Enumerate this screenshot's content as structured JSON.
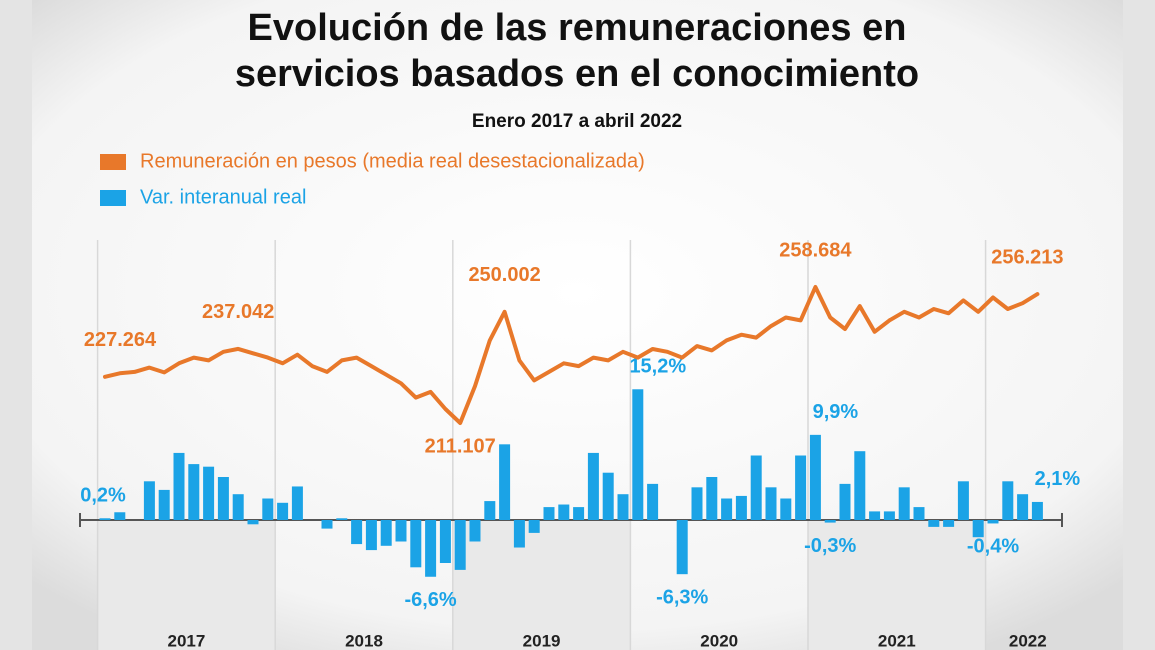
{
  "chart_data": {
    "type": "combo",
    "title": [
      "Evolución de las remuneraciones en",
      "servicios basados en el conocimiento"
    ],
    "subtitle": "Enero 2017 a abril 2022",
    "x_labels": [
      "2017",
      "2018",
      "2019",
      "2020",
      "2021",
      "2022"
    ],
    "series": [
      {
        "name": "Remuneración en pesos (media real desestacionalizada)",
        "type": "line",
        "color": "#e8782a",
        "values": [
          227264,
          228500,
          229000,
          230500,
          228800,
          232000,
          234000,
          233000,
          236000,
          237042,
          235500,
          234000,
          232000,
          235000,
          231000,
          229000,
          233000,
          234000,
          231000,
          228000,
          225000,
          220000,
          222000,
          216000,
          211107,
          224000,
          240000,
          250002,
          233000,
          226000,
          229000,
          232000,
          231000,
          234000,
          233000,
          236000,
          234000,
          237000,
          236000,
          234000,
          238000,
          236500,
          240000,
          242000,
          241000,
          245000,
          248000,
          247000,
          258684,
          248000,
          244000,
          252000,
          243000,
          247000,
          250000,
          248000,
          251000,
          249500,
          254000,
          250000,
          255000,
          251000,
          253000,
          256213
        ],
        "value_labels": [
          "227.264",
          null,
          null,
          null,
          null,
          null,
          null,
          null,
          null,
          "237.042",
          null,
          null,
          null,
          null,
          null,
          null,
          null,
          null,
          null,
          null,
          null,
          null,
          null,
          null,
          "211.107",
          null,
          null,
          "250.002",
          null,
          null,
          null,
          null,
          null,
          null,
          null,
          null,
          null,
          null,
          null,
          null,
          null,
          null,
          null,
          null,
          null,
          null,
          null,
          null,
          "258.684",
          null,
          null,
          null,
          null,
          null,
          null,
          null,
          null,
          null,
          null,
          null,
          null,
          null,
          null,
          "256.213"
        ]
      },
      {
        "name": "Var. interanual real",
        "type": "bar",
        "color": "#1ba3e6",
        "values": [
          0.2,
          0.9,
          0,
          4.5,
          3.5,
          7.8,
          6.5,
          6.2,
          5.0,
          3.0,
          -0.5,
          2.5,
          2.0,
          3.9,
          0,
          -1.0,
          0.2,
          -2.8,
          -3.5,
          -3.0,
          -2.5,
          -5.5,
          -6.6,
          -5.0,
          -5.8,
          -2.5,
          2.2,
          8.8,
          -3.2,
          -1.5,
          1.5,
          1.8,
          1.5,
          7.8,
          5.5,
          3.0,
          15.2,
          4.2,
          0,
          -6.3,
          3.8,
          5.0,
          2.5,
          2.8,
          7.5,
          3.8,
          2.5,
          7.5,
          9.9,
          -0.3,
          4.2,
          8.0,
          1.0,
          1.0,
          3.8,
          1.5,
          -0.8,
          -0.8,
          4.5,
          -2.0,
          -0.4,
          4.5,
          3.0,
          2.1
        ],
        "value_labels": [
          "0,2%",
          null,
          null,
          null,
          null,
          null,
          null,
          null,
          null,
          null,
          null,
          null,
          null,
          null,
          null,
          null,
          null,
          null,
          null,
          null,
          null,
          null,
          "-6,6%",
          null,
          null,
          null,
          null,
          null,
          null,
          null,
          null,
          null,
          null,
          null,
          null,
          null,
          "15,2%",
          null,
          null,
          "-6,3%",
          null,
          null,
          null,
          null,
          null,
          null,
          null,
          null,
          "9,9%",
          "-0,3%",
          null,
          null,
          null,
          null,
          null,
          null,
          null,
          null,
          null,
          null,
          "-0,4%",
          null,
          null,
          "2,1%"
        ]
      }
    ]
  }
}
